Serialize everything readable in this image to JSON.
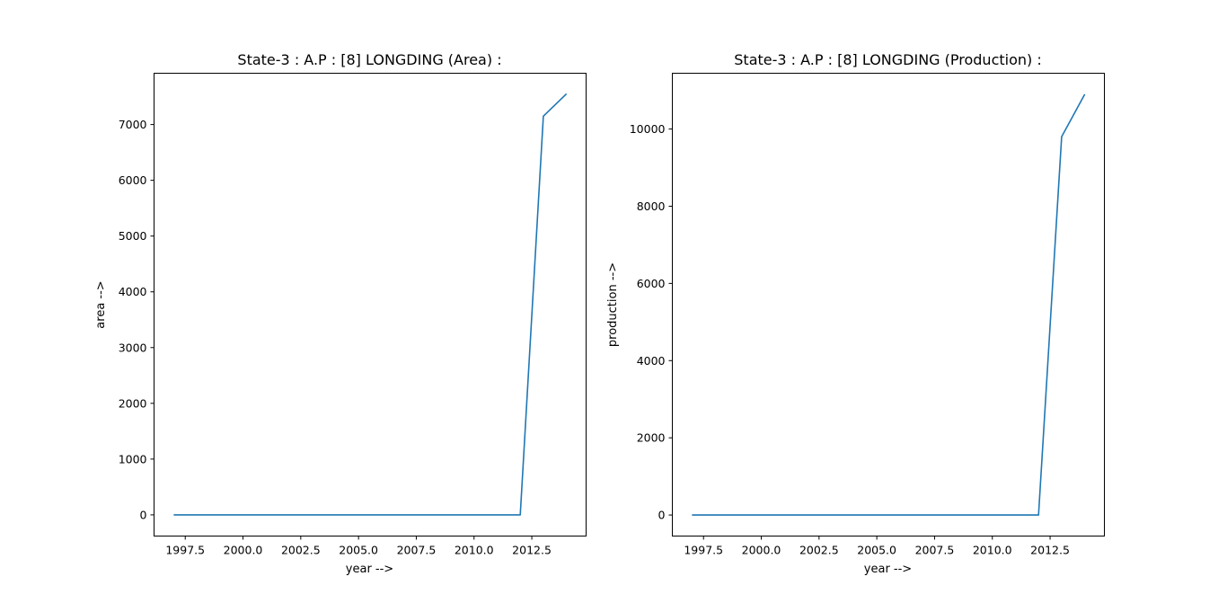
{
  "chart_data": [
    {
      "type": "line",
      "title": "State-3 : A.P : [8] LONGDING (Area) :",
      "xlabel": "year -->",
      "ylabel": "area -->",
      "x_ticks": [
        "1997.5",
        "2000.0",
        "2002.5",
        "2005.0",
        "2007.5",
        "2010.0",
        "2012.5"
      ],
      "y_ticks": [
        "0",
        "1000",
        "2000",
        "3000",
        "4000",
        "5000",
        "6000",
        "7000"
      ],
      "xlim": [
        1996.15,
        2014.85
      ],
      "ylim": [
        -380,
        7920
      ],
      "grid": false,
      "series": [
        {
          "color": "#1f77b4",
          "x": [
            1997,
            1998,
            1999,
            2000,
            2001,
            2002,
            2003,
            2004,
            2005,
            2006,
            2007,
            2008,
            2009,
            2010,
            2011,
            2012,
            2013,
            2014
          ],
          "y": [
            0,
            0,
            0,
            0,
            0,
            0,
            0,
            0,
            0,
            0,
            0,
            0,
            0,
            0,
            0,
            0,
            7150,
            7550
          ]
        }
      ]
    },
    {
      "type": "line",
      "title": "State-3 : A.P : [8] LONGDING (Production) :",
      "xlabel": "year -->",
      "ylabel": "production -->",
      "x_ticks": [
        "1997.5",
        "2000.0",
        "2002.5",
        "2005.0",
        "2007.5",
        "2010.0",
        "2012.5"
      ],
      "y_ticks": [
        "0",
        "2000",
        "4000",
        "6000",
        "8000",
        "10000"
      ],
      "xlim": [
        1996.15,
        2014.85
      ],
      "ylim": [
        -545,
        11445
      ],
      "grid": false,
      "series": [
        {
          "color": "#1f77b4",
          "x": [
            1997,
            1998,
            1999,
            2000,
            2001,
            2002,
            2003,
            2004,
            2005,
            2006,
            2007,
            2008,
            2009,
            2010,
            2011,
            2012,
            2013,
            2014
          ],
          "y": [
            0,
            0,
            0,
            0,
            0,
            0,
            0,
            0,
            0,
            0,
            0,
            0,
            0,
            0,
            0,
            0,
            9800,
            10900
          ]
        }
      ]
    }
  ]
}
